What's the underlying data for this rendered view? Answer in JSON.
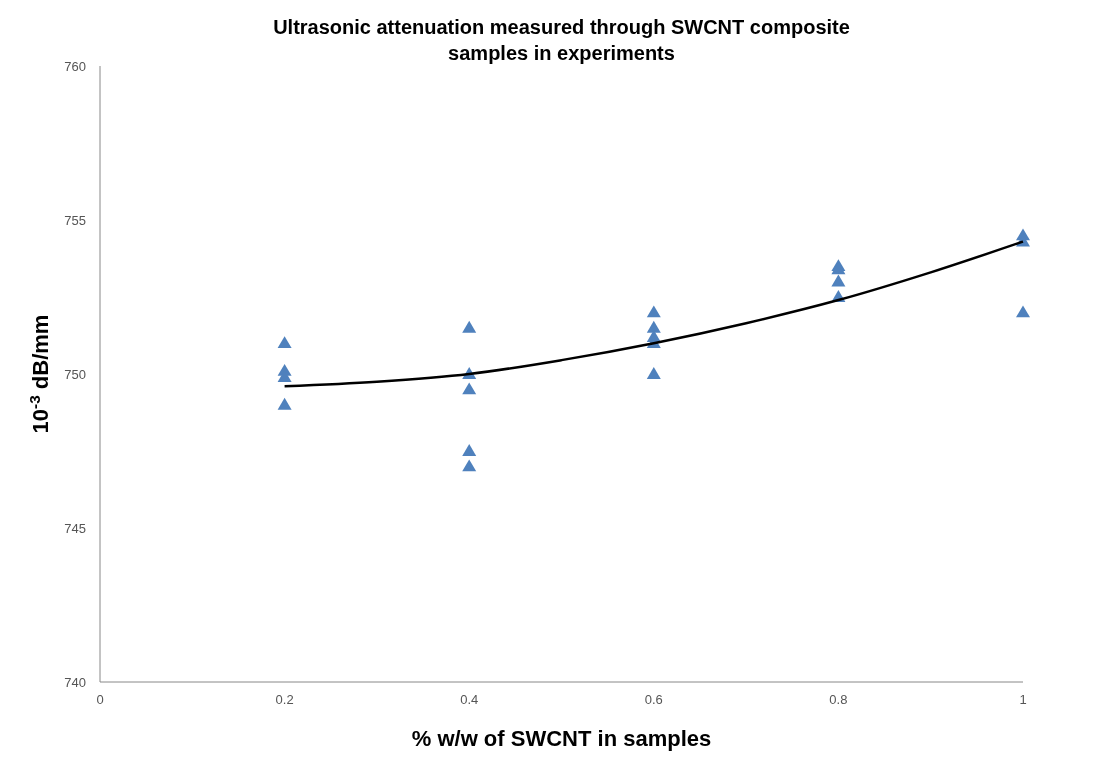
{
  "chart_data": {
    "type": "scatter",
    "title": "Ultrasonic attenuation measured through SWCNT composite samples in experiments",
    "xlabel": "% w/w of SWCNT in samples",
    "ylabel": "10$^{-3}$ dB/mm",
    "xlim": [
      0,
      1
    ],
    "xticks": [
      0,
      0.2,
      0.4,
      0.6,
      0.8,
      1
    ],
    "ylim": [
      740,
      760
    ],
    "yticks": [
      740,
      745,
      750,
      755,
      760
    ],
    "grid": false,
    "marker": "triangle",
    "series": [
      {
        "color": "#4f81bd",
        "x": [
          0.2,
          0.2,
          0.2,
          0.2,
          0.4,
          0.4,
          0.4,
          0.4,
          0.4,
          0.6,
          0.6,
          0.6,
          0.6,
          0.6,
          0.8,
          0.8,
          0.8,
          0.8,
          1,
          1,
          1
        ],
        "values": [
          751,
          750.1,
          749.9,
          749,
          751.5,
          750,
          749.5,
          747.5,
          747,
          752,
          751.5,
          751.2,
          751,
          750,
          753.5,
          753.4,
          753,
          752.5,
          754.5,
          754.3,
          752
        ]
      },
      {
        "type": "line",
        "color": "#000000",
        "marker": "none",
        "x": [
          0.2,
          0.3,
          0.4,
          0.5,
          0.6,
          0.7,
          0.8,
          0.9,
          1
        ],
        "values": [
          749.6,
          749.75,
          750,
          750.45,
          751,
          751.65,
          752.4,
          753.3,
          754.3
        ]
      }
    ]
  }
}
